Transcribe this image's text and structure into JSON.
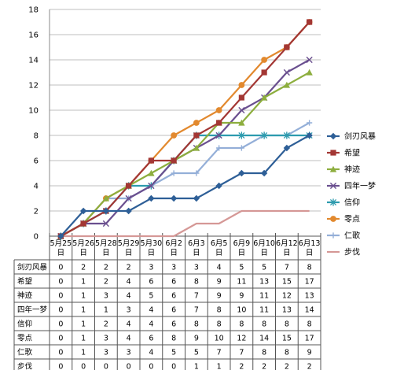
{
  "chart_data": {
    "type": "line",
    "title": "",
    "xlabel": "",
    "ylabel": "",
    "ylim": [
      0,
      18
    ],
    "yticks": [
      0,
      2,
      4,
      6,
      8,
      10,
      12,
      14,
      16,
      18
    ],
    "grid": true,
    "legend_position": "right",
    "categories": [
      "5月25日",
      "5月26日",
      "5月28日",
      "5月29日",
      "5月30日",
      "6月2日",
      "6月3日",
      "6月5日",
      "6月9日",
      "6月10日",
      "6月12日",
      "6月13日"
    ],
    "category_lines": [
      [
        "5月25",
        "日"
      ],
      [
        "5月26",
        "日"
      ],
      [
        "5月28",
        "日"
      ],
      [
        "5月29",
        "日"
      ],
      [
        "5月30",
        "日"
      ],
      [
        "6月2",
        "日"
      ],
      [
        "6月3",
        "日"
      ],
      [
        "6月5",
        "日"
      ],
      [
        "6月9",
        "日"
      ],
      [
        "6月10",
        "日"
      ],
      [
        "6月12",
        "日"
      ],
      [
        "6月13",
        "日"
      ]
    ],
    "series": [
      {
        "name": "剑刃风暴",
        "color": "#2E5F97",
        "marker": "diamond",
        "values": [
          0,
          2,
          2,
          2,
          3,
          3,
          3,
          4,
          5,
          5,
          7,
          8
        ]
      },
      {
        "name": "希望",
        "color": "#A33734",
        "marker": "square",
        "values": [
          0,
          1,
          2,
          4,
          6,
          6,
          8,
          9,
          11,
          13,
          15,
          17
        ]
      },
      {
        "name": "神迹",
        "color": "#8DAE3E",
        "marker": "triangle",
        "values": [
          0,
          1,
          3,
          4,
          5,
          6,
          7,
          9,
          9,
          11,
          12,
          13
        ]
      },
      {
        "name": "四年一梦",
        "color": "#6A4F8F",
        "marker": "x",
        "values": [
          0,
          1,
          1,
          3,
          4,
          6,
          7,
          8,
          10,
          11,
          13,
          14
        ]
      },
      {
        "name": "信仰",
        "color": "#2D9BAE",
        "marker": "star",
        "values": [
          0,
          1,
          2,
          4,
          4,
          6,
          8,
          8,
          8,
          8,
          8,
          8
        ]
      },
      {
        "name": "零点",
        "color": "#E2892E",
        "marker": "circle",
        "values": [
          0,
          1,
          3,
          4,
          6,
          8,
          9,
          10,
          12,
          14,
          15,
          17
        ]
      },
      {
        "name": "仁歌",
        "color": "#94AFD8",
        "marker": "plus",
        "values": [
          0,
          1,
          3,
          3,
          4,
          5,
          5,
          7,
          7,
          8,
          8,
          9
        ]
      },
      {
        "name": "步伐",
        "color": "#D59896",
        "marker": "line",
        "values": [
          0,
          0,
          0,
          0,
          0,
          0,
          1,
          1,
          2,
          2,
          2,
          2
        ]
      }
    ]
  }
}
